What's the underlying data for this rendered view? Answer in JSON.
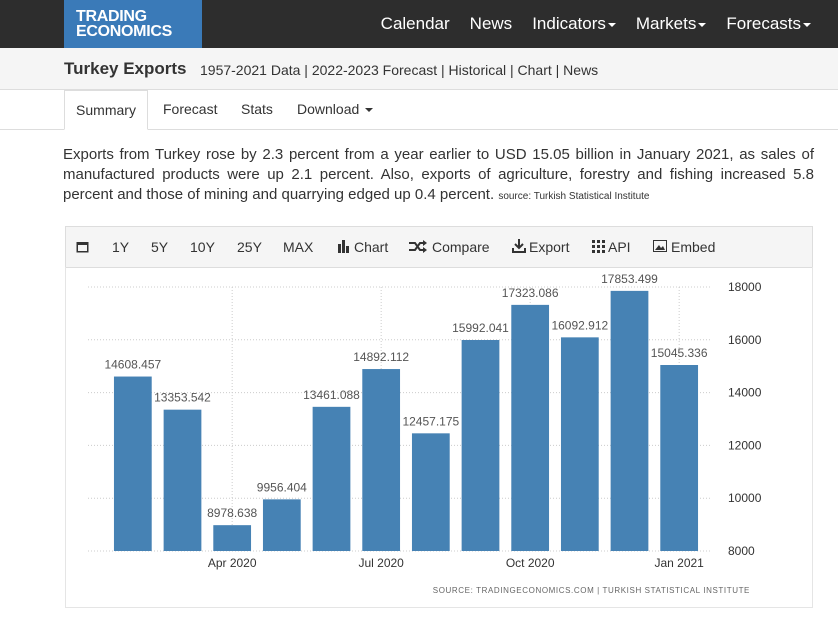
{
  "nav": {
    "logo": [
      "TRADING",
      "ECONOMICS"
    ],
    "items": [
      "Calendar",
      "News",
      "Indicators",
      "Markets",
      "Forecasts"
    ]
  },
  "header": {
    "title": "Turkey Exports",
    "links": "1957-2021 Data | 2022-2023 Forecast | Historical | Chart | News"
  },
  "tabs": [
    "Summary",
    "Forecast",
    "Stats",
    "Download"
  ],
  "summary": {
    "text": "Exports from Turkey rose by 2.3 percent from a year earlier to USD 15.05 billion in January 2021, as sales of manufactured products were up 2.1 percent. Also, exports of agriculture, forestry and fishing increased 5.8 percent and those of mining and quarrying edged up 0.4 percent.",
    "source": "source: Turkish Statistical Institute"
  },
  "toolbar": [
    "1Y",
    "5Y",
    "10Y",
    "25Y",
    "MAX",
    "Chart",
    "Compare",
    "Export",
    "API",
    "Embed"
  ],
  "chart_data": {
    "type": "bar",
    "categories": [
      null,
      null,
      "Apr 2020",
      null,
      null,
      "Jul 2020",
      null,
      null,
      "Oct 2020",
      null,
      null,
      "Jan 2021"
    ],
    "values": [
      14608.457,
      13353.542,
      8978.638,
      9956.404,
      13461.088,
      14892.112,
      12457.175,
      15992.041,
      17323.086,
      16092.912,
      17853.499,
      15045.336
    ],
    "color": "#4682b4",
    "ylim": [
      8000,
      18000
    ],
    "yticks": [
      8000,
      10000,
      12000,
      14000,
      16000,
      18000
    ],
    "grid": true,
    "source": "SOURCE: TRADINGECONOMICS.COM | TURKISH STATISTICAL INSTITUTE"
  }
}
